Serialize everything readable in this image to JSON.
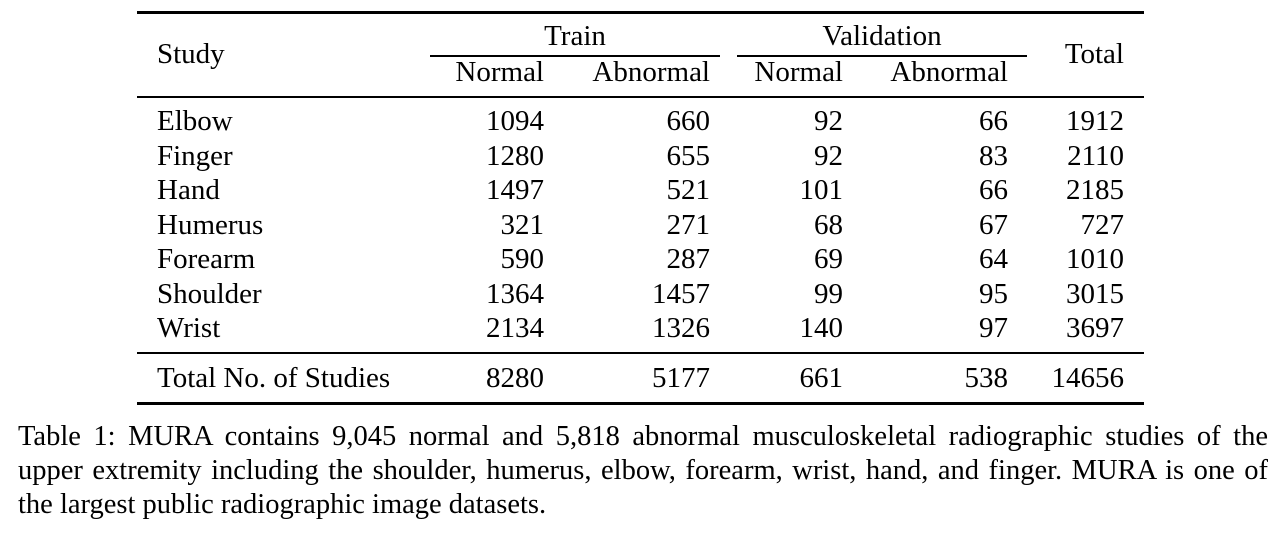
{
  "table": {
    "header": {
      "study": "Study",
      "train": "Train",
      "validation": "Validation",
      "total": "Total",
      "train_normal": "Normal",
      "train_abnormal": "Abnormal",
      "val_normal": "Normal",
      "val_abnormal": "Abnormal"
    },
    "rows": [
      {
        "study": "Elbow",
        "train_normal": "1094",
        "train_abnormal": "660",
        "val_normal": "92",
        "val_abnormal": "66",
        "total": "1912"
      },
      {
        "study": "Finger",
        "train_normal": "1280",
        "train_abnormal": "655",
        "val_normal": "92",
        "val_abnormal": "83",
        "total": "2110"
      },
      {
        "study": "Hand",
        "train_normal": "1497",
        "train_abnormal": "521",
        "val_normal": "101",
        "val_abnormal": "66",
        "total": "2185"
      },
      {
        "study": "Humerus",
        "train_normal": "321",
        "train_abnormal": "271",
        "val_normal": "68",
        "val_abnormal": "67",
        "total": "727"
      },
      {
        "study": "Forearm",
        "train_normal": "590",
        "train_abnormal": "287",
        "val_normal": "69",
        "val_abnormal": "64",
        "total": "1010"
      },
      {
        "study": "Shoulder",
        "train_normal": "1364",
        "train_abnormal": "1457",
        "val_normal": "99",
        "val_abnormal": "95",
        "total": "3015"
      },
      {
        "study": "Wrist",
        "train_normal": "2134",
        "train_abnormal": "1326",
        "val_normal": "140",
        "val_abnormal": "97",
        "total": "3697"
      }
    ],
    "total_row": {
      "study": "Total No. of Studies",
      "train_normal": "8280",
      "train_abnormal": "5177",
      "val_normal": "661",
      "val_abnormal": "538",
      "total": "14656"
    }
  },
  "caption": "Table 1: MURA contains 9,045 normal and 5,818 abnormal musculoskeletal radiographic studies of the upper extremity including the shoulder, humerus, elbow, forearm, wrist, hand, and finger. MURA is one of the largest public radiographic image datasets."
}
